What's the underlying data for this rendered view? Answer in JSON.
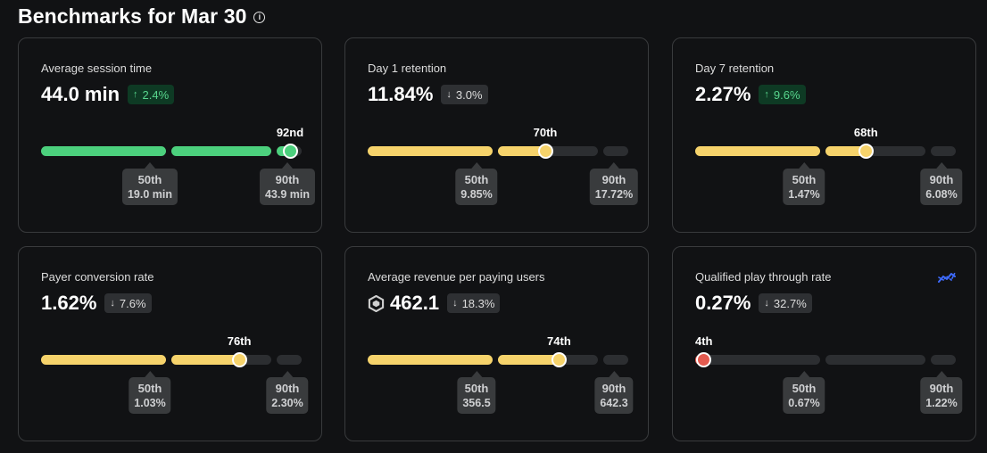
{
  "header": {
    "title": "Benchmarks for Mar 30"
  },
  "colors": {
    "green": "#4cd07d",
    "yellow": "#f6d36b",
    "red": "#e35a4f",
    "track": "#2c2e31",
    "accent_blue": "#3e6bff"
  },
  "cards": [
    {
      "title": "Average session time",
      "value": "44.0 min",
      "change": {
        "direction": "up",
        "arrow": "↑",
        "text": "2.4%"
      },
      "rank": "92nd",
      "progress": 0.92,
      "status": "green",
      "p50": {
        "label": "50th",
        "value": "19.0 min"
      },
      "p90": {
        "label": "90th",
        "value": "43.9 min"
      }
    },
    {
      "title": "Day 1 retention",
      "value": "11.84%",
      "change": {
        "direction": "down",
        "arrow": "↓",
        "text": "3.0%"
      },
      "rank": "70th",
      "progress": 0.7,
      "status": "yellow",
      "p50": {
        "label": "50th",
        "value": "9.85%"
      },
      "p90": {
        "label": "90th",
        "value": "17.72%"
      }
    },
    {
      "title": "Day 7 retention",
      "value": "2.27%",
      "change": {
        "direction": "up",
        "arrow": "↑",
        "text": "9.6%"
      },
      "rank": "68th",
      "progress": 0.68,
      "status": "yellow",
      "p50": {
        "label": "50th",
        "value": "1.47%"
      },
      "p90": {
        "label": "90th",
        "value": "6.08%"
      }
    },
    {
      "title": "Payer conversion rate",
      "value": "1.62%",
      "change": {
        "direction": "down",
        "arrow": "↓",
        "text": "7.6%"
      },
      "rank": "76th",
      "progress": 0.76,
      "status": "yellow",
      "p50": {
        "label": "50th",
        "value": "1.03%"
      },
      "p90": {
        "label": "90th",
        "value": "2.30%"
      }
    },
    {
      "title": "Average revenue per paying users",
      "value": "462.1",
      "currency_icon": "robux-icon",
      "change": {
        "direction": "down",
        "arrow": "↓",
        "text": "18.3%"
      },
      "rank": "74th",
      "progress": 0.74,
      "status": "yellow",
      "p50": {
        "label": "50th",
        "value": "356.5"
      },
      "p90": {
        "label": "90th",
        "value": "642.3"
      }
    },
    {
      "title": "Qualified play through rate",
      "value": "0.27%",
      "trend_icon": "trend-chart-icon",
      "change": {
        "direction": "down",
        "arrow": "↓",
        "text": "32.7%"
      },
      "rank": "4th",
      "progress": 0.04,
      "status": "red",
      "p50": {
        "label": "50th",
        "value": "0.67%"
      },
      "p90": {
        "label": "90th",
        "value": "1.22%"
      }
    }
  ]
}
